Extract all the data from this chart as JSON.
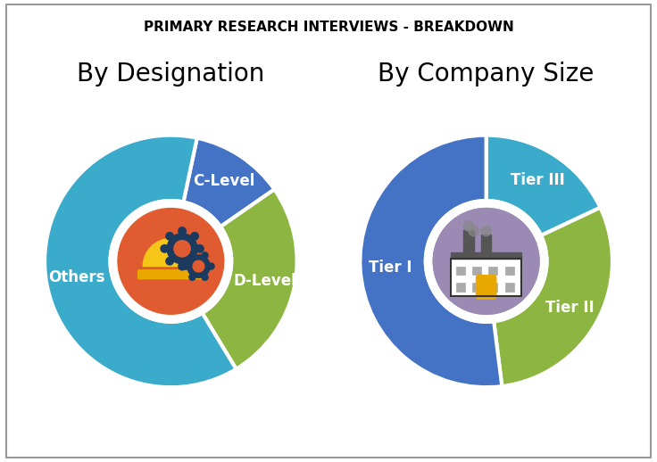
{
  "title": "PRIMARY RESEARCH INTERVIEWS - BREAKDOWN",
  "title_fontsize": 11,
  "chart1_title": "By Designation",
  "chart2_title": "By Company Size",
  "subtitle_fontsize": 20,
  "chart1_labels": [
    "C-Level",
    "D-Level",
    "Others"
  ],
  "chart1_values": [
    12,
    26,
    62
  ],
  "chart1_colors": [
    "#4472C4",
    "#8DB542",
    "#3AABCA"
  ],
  "chart2_labels": [
    "Tier III",
    "Tier II",
    "Tier I"
  ],
  "chart2_values": [
    18,
    30,
    52
  ],
  "chart2_colors": [
    "#3AABCA",
    "#8DB542",
    "#4472C4"
  ],
  "center1_color": "#E05C30",
  "center2_color": "#9B8BB4",
  "bg_color": "#FFFFFF",
  "label_fontsize": 12,
  "startangle1": 78,
  "startangle2": 90
}
